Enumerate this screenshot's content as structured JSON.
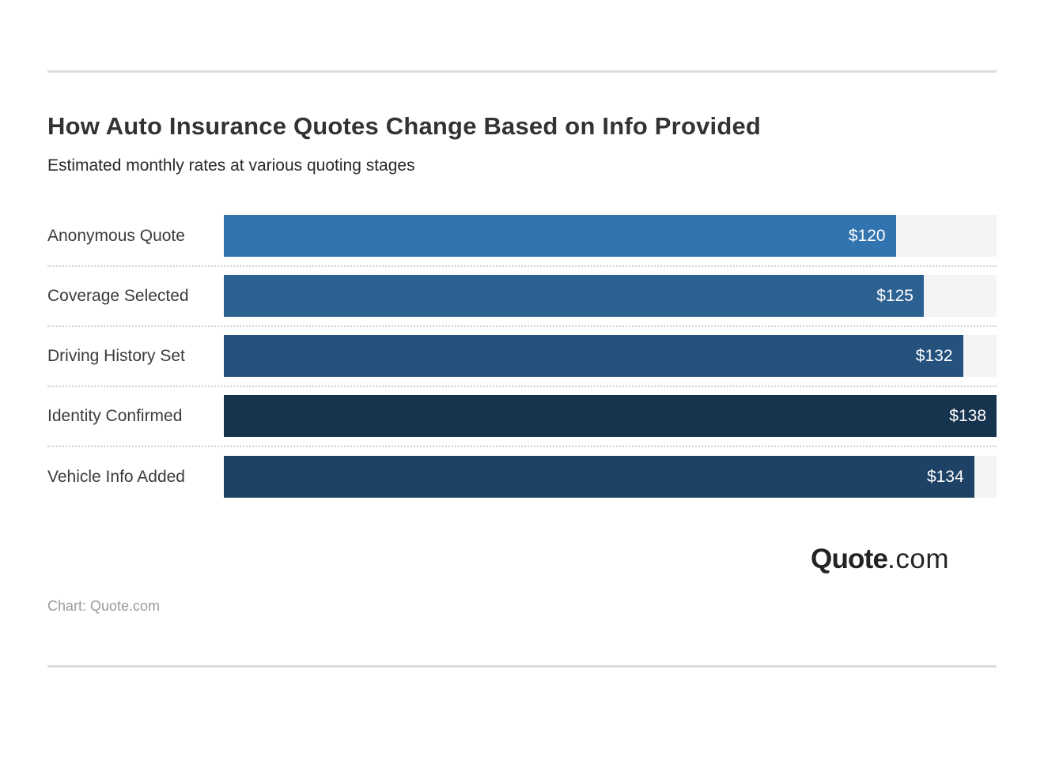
{
  "header": {
    "title": "How Auto Insurance Quotes Change Based on Info Provided",
    "subtitle": "Estimated monthly rates at various quoting stages"
  },
  "chart_data": {
    "type": "bar",
    "orientation": "horizontal",
    "title": "How Auto Insurance Quotes Change Based on Info Provided",
    "subtitle": "Estimated monthly rates at various quoting stages",
    "categories": [
      "Anonymous Quote",
      "Coverage Selected",
      "Driving History Set",
      "Identity Confirmed",
      "Vehicle Info Added"
    ],
    "values": [
      120,
      125,
      132,
      138,
      134
    ],
    "value_labels": [
      "$120",
      "$125",
      "$132",
      "$138",
      "$134"
    ],
    "value_unit": "USD per month",
    "max_value": 138,
    "xlim": [
      0,
      138
    ],
    "bar_colors": [
      "#3274b0",
      "#2c6192",
      "#24527d",
      "#17344f",
      "#1e4265"
    ],
    "track_color": "#f4f4f4",
    "separator_style": "dotted",
    "grid": false,
    "legend": false,
    "value_label_position": "inside-end"
  },
  "footer": {
    "logo_bold": "Quote",
    "logo_light": ".com",
    "credit": "Chart: Quote.com"
  }
}
